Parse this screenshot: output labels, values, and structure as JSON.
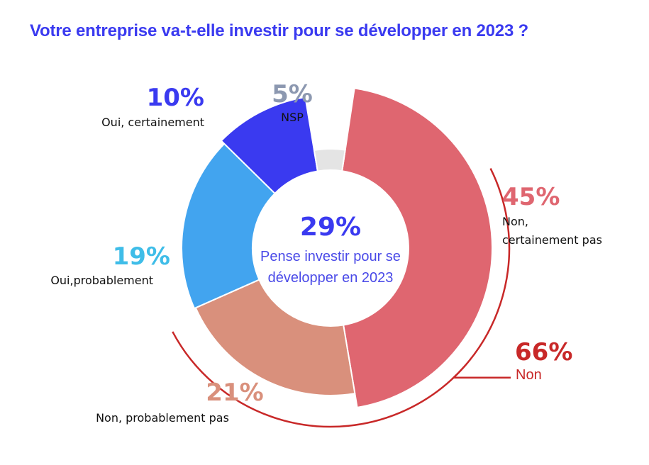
{
  "title": "Votre entreprise va-t-elle investir pour se développer en 2023 ?",
  "colors": {
    "title": "#3a3af0",
    "center_value": "#3a3af0",
    "center_text": "#4a4ae8",
    "group_bracket": "#c82828"
  },
  "chart_data": {
    "type": "donut",
    "title": "Votre entreprise va-t-elle investir pour se développer en 2023 ?",
    "unit": "%",
    "center": {
      "value": "29%",
      "text_line1": "Pense investir pour se",
      "text_line2": "développer en 2023"
    },
    "slices": [
      {
        "label": "Non, certainement pas",
        "label_line1": "Non,",
        "label_line2": "certainement pas",
        "value": 45,
        "value_label": "45%",
        "color": "#df6670",
        "label_color": "#df6670"
      },
      {
        "label": "Non, probablement pas",
        "value": 21,
        "value_label": "21%",
        "color": "#d9907c",
        "label_color": "#d9907c"
      },
      {
        "label": "Oui,probablement",
        "value": 19,
        "value_label": "19%",
        "color": "#42a4ef",
        "label_color": "#3fbde8"
      },
      {
        "label": "Oui, certainement",
        "value": 10,
        "value_label": "10%",
        "color": "#3a3af0",
        "label_color": "#3a3af0"
      },
      {
        "label": "NSP",
        "value": 5,
        "value_label": "5%",
        "color": "#e4e4e4",
        "label_color": "#8c98b0"
      }
    ],
    "groups": [
      {
        "label": "Non",
        "value": 66,
        "value_label": "66%",
        "color": "#c82828"
      }
    ]
  }
}
